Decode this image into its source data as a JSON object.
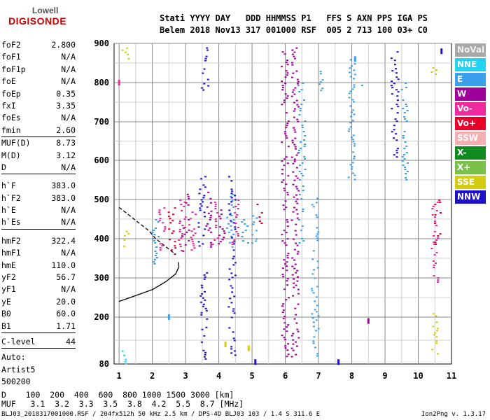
{
  "logo": {
    "top": "Lowell",
    "bottom": "DIGISONDE"
  },
  "header": {
    "line1": "Stati YYYY DAY   DDD HHMMSS P1   FFS S AXN PPS IGA PS",
    "line2": "Belem 2018 Nov13 317 001000 RSF  005 2 713 100 03+ C0"
  },
  "params_a": [
    {
      "k": "foF2",
      "v": "2.800"
    },
    {
      "k": "foF1",
      "v": "N/A"
    },
    {
      "k": "foF1p",
      "v": "N/A"
    },
    {
      "k": "foE",
      "v": "N/A"
    },
    {
      "k": "foEp",
      "v": "0.35"
    },
    {
      "k": "fxI",
      "v": "3.35"
    },
    {
      "k": "foEs",
      "v": "N/A"
    },
    {
      "k": "fmin",
      "v": "2.60"
    }
  ],
  "params_b": [
    {
      "k": "MUF(D)",
      "v": "8.73"
    },
    {
      "k": "M(D)",
      "v": "3.12"
    },
    {
      "k": "D",
      "v": "N/A"
    }
  ],
  "params_c": [
    {
      "k": "h`F",
      "v": "383.0"
    },
    {
      "k": "h`F2",
      "v": "383.0"
    },
    {
      "k": "h`E",
      "v": "N/A"
    },
    {
      "k": "h`Es",
      "v": "N/A"
    }
  ],
  "params_d": [
    {
      "k": "hmF2",
      "v": "322.4"
    },
    {
      "k": "hmF1",
      "v": "N/A"
    },
    {
      "k": "hmE",
      "v": "110.0"
    },
    {
      "k": "yF2",
      "v": "56.7"
    },
    {
      "k": "yF1",
      "v": "N/A"
    },
    {
      "k": "yE",
      "v": "20.0"
    },
    {
      "k": "B0",
      "v": "60.0"
    },
    {
      "k": "B1",
      "v": "1.71"
    }
  ],
  "params_e": [
    {
      "k": "C-level",
      "v": "44"
    }
  ],
  "params_f": [
    {
      "k": "Auto:",
      "v": ""
    },
    {
      "k": "Artist5",
      "v": ""
    },
    {
      "k": "500200",
      "v": ""
    }
  ],
  "legend": [
    {
      "label": "NoVal",
      "color": "#a8a8a8"
    },
    {
      "label": "NNE",
      "color": "#22d3f0"
    },
    {
      "label": "E",
      "color": "#3aa0ee"
    },
    {
      "label": "W",
      "color": "#a0009a"
    },
    {
      "label": "Vo-",
      "color": "#f02a9c"
    },
    {
      "label": "Vo+",
      "color": "#e8002a"
    },
    {
      "label": "SSW",
      "color": "#f4b0b0"
    },
    {
      "label": "X-",
      "color": "#0e8a1e"
    },
    {
      "label": "X+",
      "color": "#7cc04c"
    },
    {
      "label": "SSE",
      "color": "#d4cc10"
    },
    {
      "label": "NNW",
      "color": "#1c10c8"
    }
  ],
  "footer": {
    "line1": "D    100  200  400  600  800 1000 1500 3000 [km]",
    "line2": "MUF   3.1  3.2  3.3  3.5  3.8  4.2  5.5  8.7 [MHz]"
  },
  "bottom_text": "BLJ03_2018317001000.RSF / 204fx512h 50 kHz 2.5 km / DPS-4D BLJ03 103 / 1.4 S 311.6 E",
  "version": "Ion2Png v. 1.3.17",
  "chart_data": {
    "type": "scatter",
    "xlabel": "",
    "ylabel": "",
    "x_ticks": [
      "1",
      "2",
      "3",
      "4",
      "5",
      "6",
      "7",
      "8",
      "9",
      "10",
      "11"
    ],
    "y_ticks": [
      "80",
      "200",
      "300",
      "400",
      "500",
      "600",
      "700",
      "800",
      "900"
    ],
    "x_domain": [
      0.85,
      11.0
    ],
    "y_ticks_values": [
      80,
      200,
      300,
      400,
      500,
      600,
      700,
      800,
      900
    ],
    "traces": [
      {
        "name": "O-trace",
        "color": "#000000",
        "dash": false,
        "x": [
          1.0,
          1.5,
          2.0,
          2.4,
          2.7,
          2.8,
          2.78
        ],
        "y": [
          240,
          255,
          270,
          290,
          310,
          328,
          340
        ]
      },
      {
        "name": "X-trace",
        "color": "#000000",
        "dash": true,
        "x": [
          1.0,
          1.3,
          1.6,
          1.9,
          2.1,
          2.4,
          2.7
        ],
        "y": [
          480,
          460,
          440,
          420,
          400,
          380,
          360
        ]
      }
    ],
    "columns": [
      {
        "x": 1.15,
        "ymin": 80,
        "ymax": 120,
        "color": "#22d3f0"
      },
      {
        "x": 1.2,
        "ymin": 860,
        "ymax": 895,
        "color": "#d4cc10"
      },
      {
        "x": 1.2,
        "ymin": 380,
        "ymax": 420,
        "color": "#d4cc10"
      },
      {
        "x": 2.1,
        "ymin": 330,
        "ymax": 450,
        "color": "#3aa0ee"
      },
      {
        "x": 2.3,
        "ymin": 370,
        "ymax": 480,
        "color": "#f02a9c"
      },
      {
        "x": 2.6,
        "ymin": 360,
        "ymax": 480,
        "color": "#e8002a"
      },
      {
        "x": 2.9,
        "ymin": 370,
        "ymax": 500,
        "color": "#f02a9c"
      },
      {
        "x": 3.0,
        "ymin": 370,
        "ymax": 520,
        "color": "#a0009a"
      },
      {
        "x": 3.2,
        "ymin": 370,
        "ymax": 480,
        "color": "#f02a9c"
      },
      {
        "x": 3.5,
        "ymin": 380,
        "ymax": 560,
        "color": "#1c10c8"
      },
      {
        "x": 3.55,
        "ymin": 90,
        "ymax": 320,
        "color": "#1c10c8"
      },
      {
        "x": 3.6,
        "ymin": 780,
        "ymax": 890,
        "color": "#1c10c8"
      },
      {
        "x": 3.7,
        "ymin": 380,
        "ymax": 520,
        "color": "#a0009a"
      },
      {
        "x": 3.9,
        "ymin": 380,
        "ymax": 500,
        "color": "#f02a9c"
      },
      {
        "x": 4.1,
        "ymin": 380,
        "ymax": 480,
        "color": "#a0009a"
      },
      {
        "x": 4.35,
        "ymin": 380,
        "ymax": 520,
        "color": "#3aa0ee"
      },
      {
        "x": 4.4,
        "ymin": 100,
        "ymax": 560,
        "color": "#1c10c8"
      },
      {
        "x": 4.5,
        "ymin": 380,
        "ymax": 500,
        "color": "#f02a9c"
      },
      {
        "x": 4.8,
        "ymin": 390,
        "ymax": 450,
        "color": "#3aa0ee"
      },
      {
        "x": 5.1,
        "ymin": 390,
        "ymax": 460,
        "color": "#3aa0ee"
      },
      {
        "x": 5.2,
        "ymin": 440,
        "ymax": 500,
        "color": "#e8002a"
      },
      {
        "x": 6.0,
        "ymin": 100,
        "ymax": 880,
        "color": "#a0009a"
      },
      {
        "x": 6.3,
        "ymin": 100,
        "ymax": 890,
        "color": "#a0009a"
      },
      {
        "x": 6.5,
        "ymin": 380,
        "ymax": 800,
        "color": "#3aa0ee"
      },
      {
        "x": 6.9,
        "ymin": 100,
        "ymax": 510,
        "color": "#3aa0ee"
      },
      {
        "x": 7.1,
        "ymin": 780,
        "ymax": 830,
        "color": "#3aa0ee"
      },
      {
        "x": 8.0,
        "ymin": 550,
        "ymax": 860,
        "color": "#3aa0ee"
      },
      {
        "x": 8.4,
        "ymin": 790,
        "ymax": 800,
        "color": "#3aa0ee"
      },
      {
        "x": 9.3,
        "ymin": 600,
        "ymax": 880,
        "color": "#1c10c8"
      },
      {
        "x": 9.6,
        "ymin": 550,
        "ymax": 800,
        "color": "#3aa0ee"
      },
      {
        "x": 10.5,
        "ymin": 100,
        "ymax": 210,
        "color": "#d4cc10"
      },
      {
        "x": 10.5,
        "ymin": 290,
        "ymax": 500,
        "color": "#f02a9c"
      },
      {
        "x": 10.5,
        "ymin": 820,
        "ymax": 850,
        "color": "#d4cc10"
      },
      {
        "x": 10.6,
        "ymin": 380,
        "ymax": 500,
        "color": "#e8002a"
      }
    ],
    "points": [
      {
        "x": 7.6,
        "y": 85,
        "color": "#1c10c8"
      },
      {
        "x": 5.1,
        "y": 85,
        "color": "#1c10c8"
      },
      {
        "x": 8.1,
        "y": 860,
        "color": "#3aa0ee"
      },
      {
        "x": 10.7,
        "y": 880,
        "color": "#1c10c8"
      },
      {
        "x": 1.0,
        "y": 800,
        "color": "#f02a9c"
      },
      {
        "x": 2.5,
        "y": 200,
        "color": "#3aa0ee"
      },
      {
        "x": 4.2,
        "y": 130,
        "color": "#d4cc10"
      },
      {
        "x": 4.9,
        "y": 120,
        "color": "#d4cc10"
      },
      {
        "x": 8.5,
        "y": 190,
        "color": "#a0009a"
      }
    ]
  }
}
